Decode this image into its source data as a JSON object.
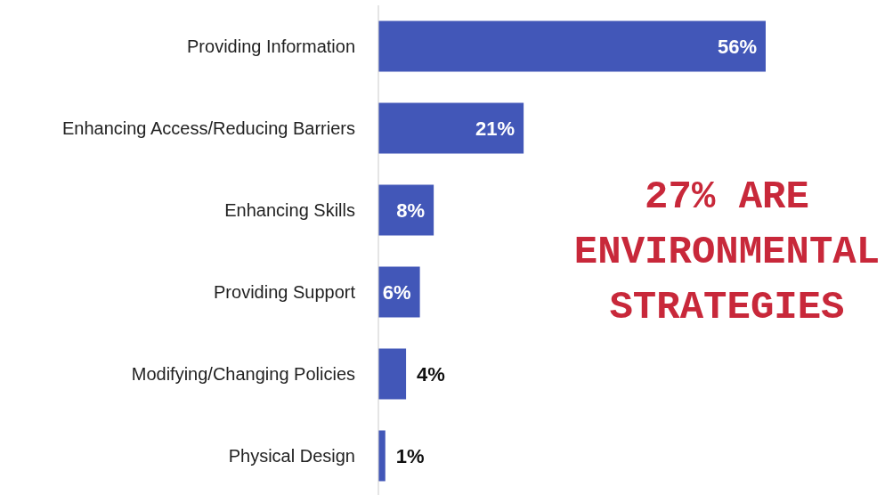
{
  "chart_data": {
    "type": "bar",
    "orientation": "horizontal",
    "categories": [
      "Providing Information",
      "Enhancing Access/Reducing Barriers",
      "Enhancing Skills",
      "Providing Support",
      "Modifying/Changing Policies",
      "Physical Design"
    ],
    "values": [
      56,
      21,
      8,
      6,
      4,
      1
    ],
    "color": "#4257b8",
    "value_labels": [
      "56%",
      "21%",
      "8%",
      "6%",
      "4%",
      "1%"
    ],
    "annotations": [
      "27% ARE ENVIRONMENTAL STRATEGIES"
    ],
    "grid": false,
    "legend": false
  }
}
